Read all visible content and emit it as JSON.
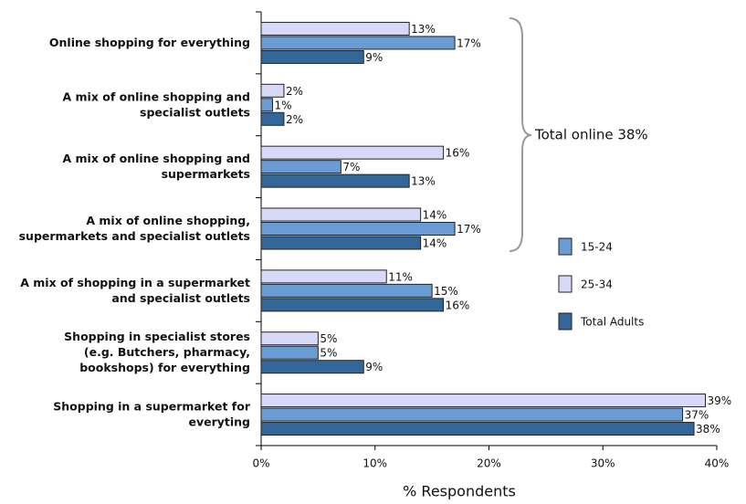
{
  "chart_data": {
    "type": "hbar",
    "categories": [
      "Online shopping for everything",
      "A mix of online shopping and\nspecialist outlets",
      "A mix of online shopping and\nsupermarkets",
      "A mix of online shopping,\nsupermarkets and specialist outlets",
      "A mix of shopping in a supermarket\nand specialist outlets",
      "Shopping in specialist stores\n(e.g. Butchers, pharmacy,\nbookshops) for everything",
      "Shopping in a supermarket for\neveryting"
    ],
    "series": [
      {
        "name": "25-34",
        "color": "#d8d8f8",
        "values": [
          13,
          2,
          16,
          14,
          11,
          5,
          39
        ],
        "value_labels": [
          "13%",
          "2%",
          "16%",
          "14%",
          "11%",
          "5%",
          "39%"
        ]
      },
      {
        "name": "15-24",
        "color": "#6a9bd3",
        "values": [
          17,
          1,
          7,
          17,
          15,
          5,
          37
        ],
        "value_labels": [
          "17%",
          "1%",
          "7%",
          "17%",
          "15%",
          "5%",
          "37%"
        ]
      },
      {
        "name": "Total Adults",
        "color": "#336699",
        "values": [
          9,
          2,
          13,
          14,
          16,
          9,
          38
        ],
        "value_labels": [
          "9%",
          "2%",
          "13%",
          "14%",
          "16%",
          "9%",
          "38%"
        ]
      }
    ],
    "legend_order": [
      1,
      0,
      2
    ],
    "xlim": [
      0,
      40
    ],
    "xticks": [
      {
        "value": 0,
        "label": "0%"
      },
      {
        "value": 10,
        "label": "10%"
      },
      {
        "value": 20,
        "label": "20%"
      },
      {
        "value": 30,
        "label": "30%"
      },
      {
        "value": 40,
        "label": "40%"
      }
    ],
    "xlabel": "% Respondents",
    "annotation": "Total online 38%"
  }
}
